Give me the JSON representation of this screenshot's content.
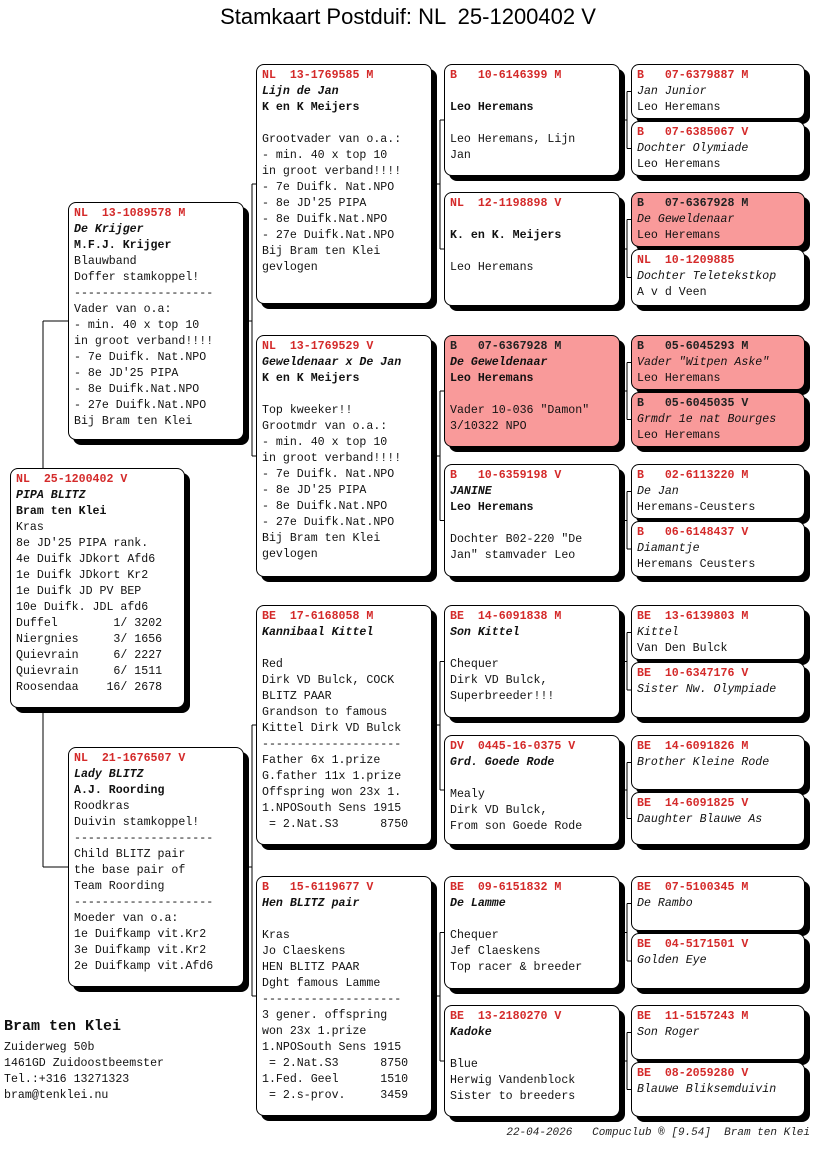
{
  "title": "Stamkaart Postduif: NL  25-1200402 V",
  "colors": {
    "ring": "#d42a2a",
    "highlight": "#f99a9a"
  },
  "subject": {
    "ring": "NL  25-1200402 V",
    "name": "PIPA BLITZ",
    "owner": "Bram ten Klei",
    "notes": [
      "Kras",
      "8e JD'25 PIPA rank.",
      "4e Duifk JDkort Afd6",
      "1e Duifk JDkort Kr2",
      "1e Duifk JD PV BEP",
      "10e Duifk. JDL afd6",
      "Duffel        1/ 3202",
      "Niergnies     3/ 1656",
      "Quievrain     6/ 2227",
      "Quievrain     6/ 1511",
      "Roosendaa    16/ 2678"
    ]
  },
  "gen2": [
    {
      "ring": "NL  13-1089578 M",
      "name": "De Krijger",
      "owner": "M.F.J. Krijger",
      "notes": [
        "Blauwband",
        "Doffer stamkoppel!",
        "--------------------",
        "Vader van o.a:",
        "- min. 40 x top 10",
        "in groot verband!!!!",
        "- 7e Duifk. Nat.NPO",
        "- 8e JD'25 PIPA",
        "- 8e Duifk.Nat.NPO",
        "- 27e Duifk.Nat.NPO",
        "Bij Bram ten Klei"
      ]
    },
    {
      "ring": "NL  21-1676507 V",
      "name": "Lady BLITZ",
      "owner": "A.J. Roording",
      "notes": [
        "Roodkras",
        "Duivin stamkoppel!",
        "--------------------",
        "Child BLITZ pair",
        "the base pair of",
        "Team Roording",
        "--------------------",
        "Moeder van o.a:",
        "1e Duifkamp vit.Kr2",
        "3e Duifkamp vit.Kr2",
        "2e Duifkamp vit.Afd6"
      ]
    }
  ],
  "gen3": [
    {
      "ring": "NL  13-1769585 M",
      "name": "Lijn de Jan",
      "owner": "K en K Meijers",
      "notes": [
        "",
        "Grootvader van o.a.:",
        "- min. 40 x top 10",
        "in groot verband!!!!",
        "- 7e Duifk. Nat.NPO",
        "- 8e JD'25 PIPA",
        "- 8e Duifk.Nat.NPO",
        "- 27e Duifk.Nat.NPO",
        "Bij Bram ten Klei",
        "gevlogen"
      ]
    },
    {
      "ring": "NL  13-1769529 V",
      "name": "Geweldenaar x De Jan",
      "owner": "K en K Meijers",
      "notes": [
        "",
        "Top kweeker!!",
        "Grootmdr van o.a.:",
        "- min. 40 x top 10",
        "in groot verband!!!!",
        "- 7e Duifk. Nat.NPO",
        "- 8e JD'25 PIPA",
        "- 8e Duifk.Nat.NPO",
        "- 27e Duifk.Nat.NPO",
        "Bij Bram ten Klei",
        "gevlogen"
      ]
    },
    {
      "ring": "BE  17-6168058 M",
      "name": "Kannibaal Kittel",
      "notes": [
        "",
        "Red",
        "Dirk VD Bulck, COCK",
        "BLITZ PAAR",
        "Grandson to famous",
        "Kittel Dirk VD Bulck",
        "--------------------",
        "Father 6x 1.prize",
        "G.father 11x 1.prize",
        "Offspring won 23x 1.",
        "1.NPOSouth Sens 1915",
        " = 2.Nat.S3      8750"
      ]
    },
    {
      "ring": "B   15-6119677 V",
      "name": "Hen BLITZ pair",
      "notes": [
        "",
        "Kras",
        "Jo Claeskens",
        "HEN BLITZ PAAR",
        "Dght famous Lamme",
        "--------------------",
        "3 gener. offspring",
        "won 23x 1.prize",
        "1.NPOSouth Sens 1915",
        " = 2.Nat.S3      8750",
        "1.Fed. Geel      1510",
        " = 2.s-prov.     3459"
      ]
    }
  ],
  "gen4": [
    {
      "ring": "B   10-6146399 M",
      "name": "",
      "owner": "Leo Heremans",
      "notes": [
        "",
        "Leo Heremans, Lijn",
        "Jan"
      ]
    },
    {
      "ring": "NL  12-1198898 V",
      "name": "",
      "owner": "K. en K. Meijers",
      "notes": [
        "",
        "Leo Heremans"
      ]
    },
    {
      "ring": "B   07-6367928 M",
      "name": "De Geweldenaar",
      "owner": "Leo Heremans",
      "highlight": true,
      "notes": [
        "",
        "Vader 10-036 \"Damon\"",
        "3/10322 NPO"
      ]
    },
    {
      "ring": "B   10-6359198 V",
      "name": "JANINE",
      "owner": "Leo Heremans",
      "notes": [
        "",
        "Dochter B02-220 \"De",
        "Jan\" stamvader Leo"
      ]
    },
    {
      "ring": "BE  14-6091838 M",
      "name": "Son Kittel",
      "notes": [
        "",
        "Chequer",
        "Dirk VD Bulck,",
        "Superbreeder!!!"
      ]
    },
    {
      "ring": "DV  0445-16-0375 V",
      "name": "Grd. Goede Rode",
      "notes": [
        "",
        "Mealy",
        "Dirk VD Bulck,",
        "From son Goede Rode"
      ]
    },
    {
      "ring": "BE  09-6151832 M",
      "name": "De Lamme",
      "notes": [
        "",
        "Chequer",
        "Jef Claeskens",
        "Top racer & breeder"
      ]
    },
    {
      "ring": "BE  13-2180270 V",
      "name": "Kadoke",
      "notes": [
        "",
        "Blue",
        "Herwig Vandenblock",
        "Sister to breeders"
      ]
    }
  ],
  "gen5": [
    {
      "ring": "B   07-6379887 M",
      "name": "Jan Junior",
      "owner": "Leo Heremans"
    },
    {
      "ring": "B   07-6385067 V",
      "name": "Dochter Olymiade",
      "owner": "Leo Heremans"
    },
    {
      "ring": "B   07-6367928 M",
      "name": "De Geweldenaar",
      "owner": "Leo Heremans",
      "highlight": true
    },
    {
      "ring": "NL  10-1209885",
      "name": "Dochter Teletekstkop",
      "owner": "A v d Veen"
    },
    {
      "ring": "B   05-6045293 M",
      "name": "Vader \"Witpen Aske\"",
      "owner": "Leo Heremans",
      "highlight": true
    },
    {
      "ring": "B   05-6045035 V",
      "name": "Grmdr 1e nat Bourges",
      "owner": "Leo Heremans",
      "highlight": true
    },
    {
      "ring": "B   02-6113220 M",
      "name": "De Jan",
      "owner": "Heremans-Ceusters"
    },
    {
      "ring": "B   06-6148437 V",
      "name": "Diamantje",
      "owner": "Heremans Ceusters"
    },
    {
      "ring": "BE  13-6139803 M",
      "name": "Kittel",
      "owner": "Van Den Bulck"
    },
    {
      "ring": "BE  10-6347176 V",
      "name": "Sister Nw. Olympiade"
    },
    {
      "ring": "BE  14-6091826 M",
      "name": "Brother Kleine Rode"
    },
    {
      "ring": "BE  14-6091825 V",
      "name": "Daughter Blauwe As"
    },
    {
      "ring": "BE  07-5100345 M",
      "name": "De Rambo"
    },
    {
      "ring": "BE  04-5171501 V",
      "name": "Golden Eye"
    },
    {
      "ring": "BE  11-5157243 M",
      "name": "Son Roger"
    },
    {
      "ring": "BE  08-2059280 V",
      "name": "Blauwe Bliksemduivin"
    }
  ],
  "contact": {
    "name": "Bram ten Klei",
    "lines": [
      "Zuiderweg 50b",
      "1461GD  Zuidoostbeemster",
      "Tel.:+316 13271323",
      "bram@tenklei.nu"
    ]
  },
  "footer": "22-04-2026   Compuclub ® [9.54]  Bram ten Klei"
}
